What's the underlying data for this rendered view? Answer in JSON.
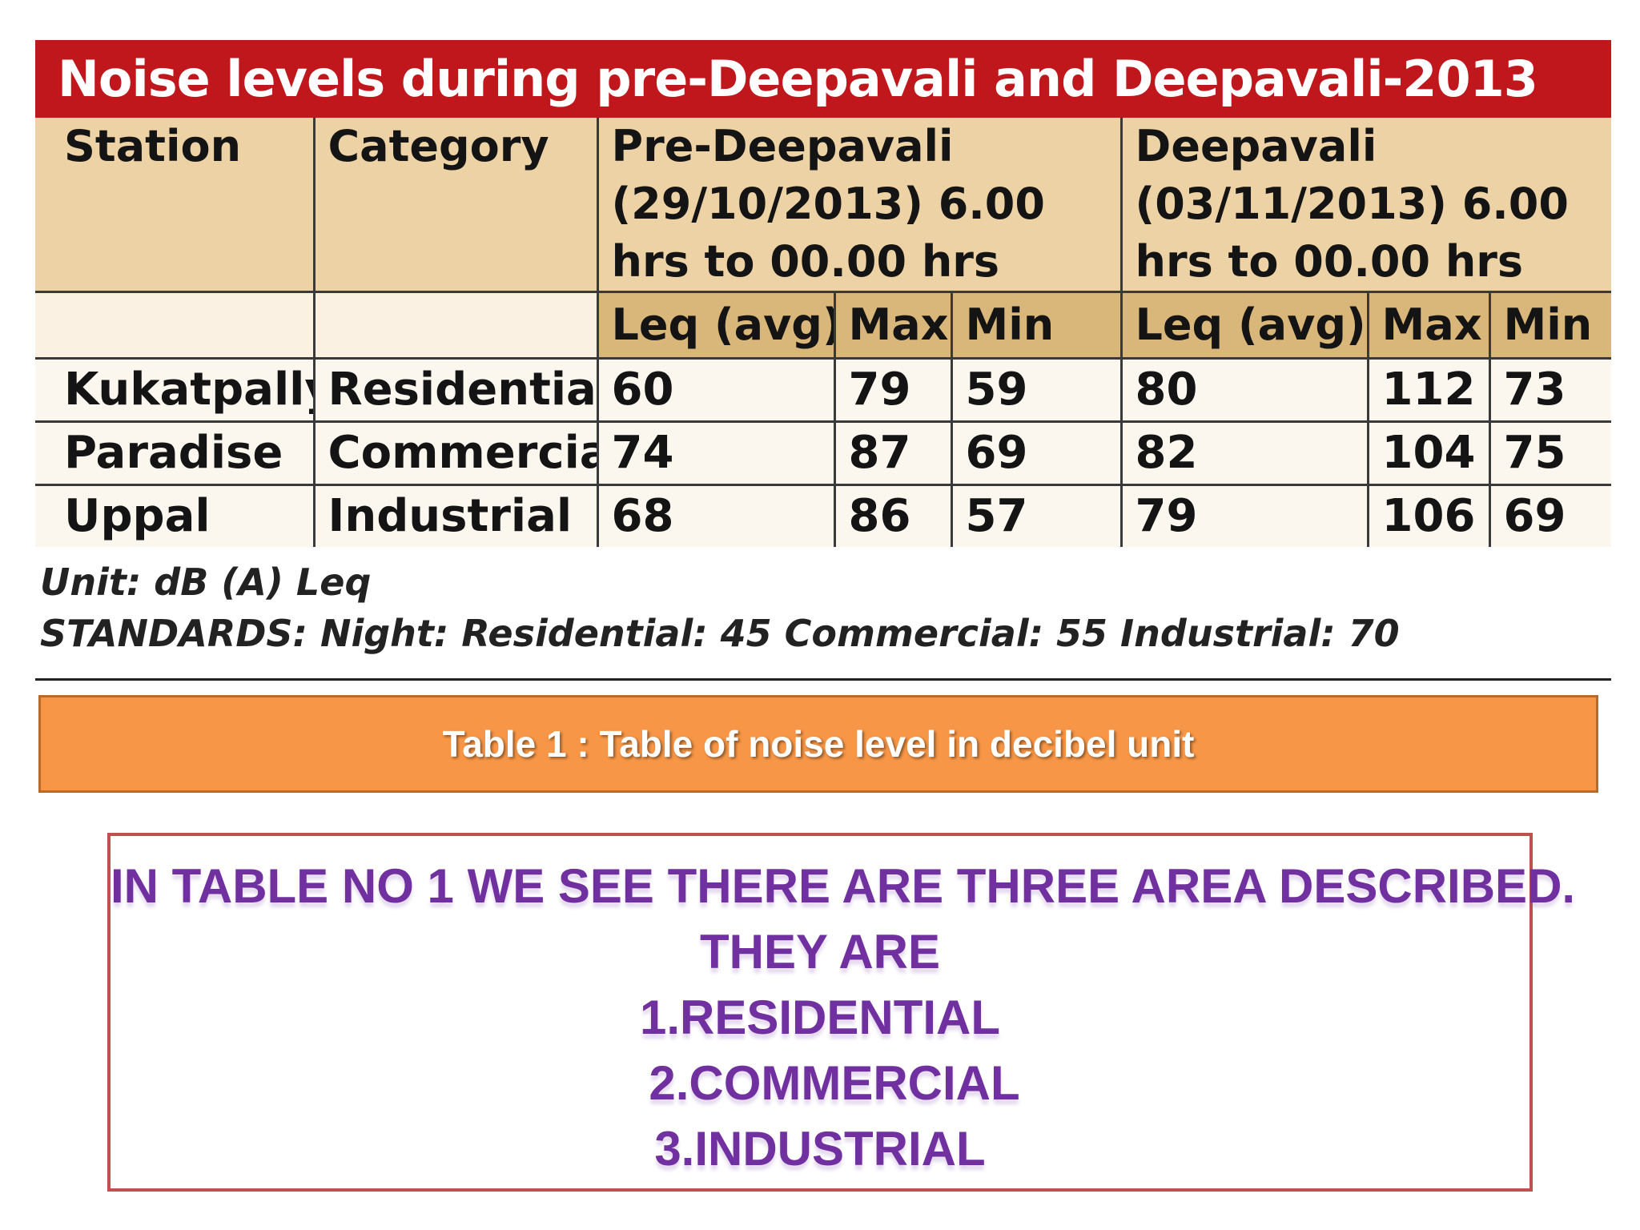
{
  "table": {
    "title": "Noise levels during pre-Deepavali and Deepavali-2013",
    "col_station": "Station",
    "col_category": "Category",
    "period_pre": "Pre-Deepavali (29/10/2013) 6.00 hrs to 00.00 hrs",
    "period_deep": "Deepavali (03/11/2013) 6.00 hrs to 00.00 hrs",
    "sub_leq": "Leq (avg)",
    "sub_max": "Max",
    "sub_min": "Min",
    "rows": [
      {
        "station": "Kukatpally",
        "category": "Residential",
        "pre_leq": "60",
        "pre_max": "79",
        "pre_min": "59",
        "d_leq": "80",
        "d_max": "112",
        "d_min": "73"
      },
      {
        "station": "Paradise",
        "category": "Commercial",
        "pre_leq": "74",
        "pre_max": "87",
        "pre_min": "69",
        "d_leq": "82",
        "d_max": "104",
        "d_min": "75"
      },
      {
        "station": "Uppal",
        "category": "Industrial",
        "pre_leq": "68",
        "pre_max": "86",
        "pre_min": "57",
        "d_leq": "79",
        "d_max": "106",
        "d_min": "69"
      }
    ],
    "unit_note": "Unit: dB (A) Leq",
    "standards_note": "STANDARDS: Night: Residential: 45 Commercial: 55 Industrial: 70"
  },
  "caption": "Table 1 : Table of noise level in decibel unit",
  "description": {
    "line1": "IN TABLE NO 1  WE SEE THERE ARE THREE AREA  DESCRIBED.",
    "line2": "THEY ARE",
    "line3": "1.RESIDENTIAL",
    "line4": "2.COMMERCIAL",
    "line5": "3.INDUSTRIAL"
  },
  "colors": {
    "title_red": "#c0171c",
    "header_tan": "#ecd2a4",
    "subheader_tan": "#d9b679",
    "caption_orange": "#f79646",
    "desc_border": "#c0504d",
    "desc_text": "#7030a0"
  }
}
